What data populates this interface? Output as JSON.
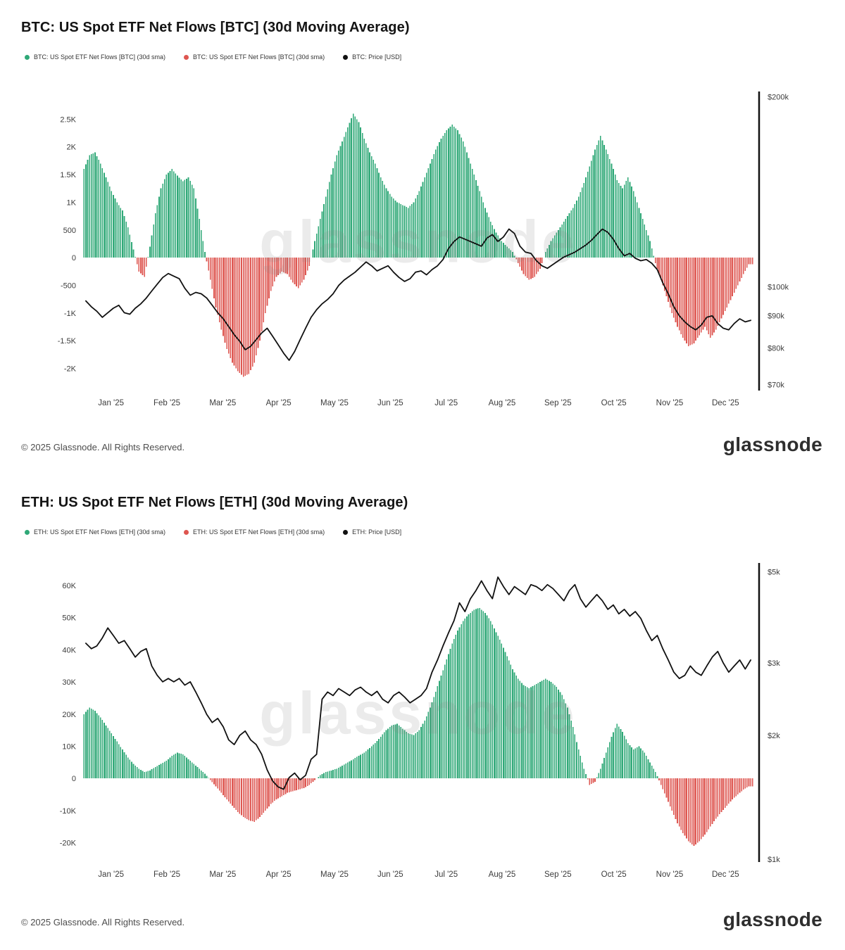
{
  "watermark": "glassnode",
  "footer": {
    "copyright": "© 2025 Glassnode. All Rights Reserved.",
    "brand": "glassnode"
  },
  "chart_data": [
    {
      "id": "btc",
      "type": "bar+line",
      "title": "BTC: US Spot ETF Net Flows [BTC] (30d Moving Average)",
      "legend": [
        {
          "label": "BTC: US Spot ETF Net Flows [BTC] (30d sma)",
          "color": "#2fa877"
        },
        {
          "label": "BTC: US Spot ETF Net Flows [BTC] (30d sma)",
          "color": "#de5650"
        },
        {
          "label": "BTC: Price [USD]",
          "color": "#111111"
        }
      ],
      "colors": {
        "positive": "#2fa877",
        "negative": "#de5650",
        "price": "#111111"
      },
      "left_axis": {
        "title": "Net Flows (30d sma, BTC)",
        "domain": [
          -2400,
          3000
        ],
        "ticks": [
          2500,
          2000,
          1500,
          1000,
          500,
          0,
          -500,
          -1000,
          -1500,
          -2000
        ],
        "labels": [
          "2.5K",
          "2K",
          "1.5K",
          "1K",
          "500",
          "0",
          "-500",
          "-1K",
          "-1.5K",
          "-2K"
        ]
      },
      "right_axis": {
        "title": "BTC Price (USD)",
        "scale": "log",
        "domain": [
          68500,
          204000
        ],
        "ticks": [
          200000,
          100000,
          90000,
          80000,
          70000
        ],
        "labels": [
          "$200k",
          "$100k",
          "$90k",
          "$80k",
          "$70k"
        ]
      },
      "x_labels": [
        "Jan '25",
        "Feb '25",
        "Mar '25",
        "Apr '25",
        "May '25",
        "Jun '25",
        "Jul '25",
        "Aug '25",
        "Sep '25",
        "Oct '25",
        "Nov '25",
        "Dec '25"
      ],
      "sample_interval_days": 3,
      "flows": [
        1600,
        1850,
        1900,
        1700,
        1450,
        1200,
        1000,
        850,
        550,
        150,
        -250,
        -350,
        200,
        800,
        1250,
        1500,
        1600,
        1480,
        1380,
        1450,
        1250,
        700,
        100,
        -400,
        -900,
        -1300,
        -1650,
        -1900,
        -2050,
        -2150,
        -2100,
        -1900,
        -1500,
        -1000,
        -600,
        -350,
        -250,
        -300,
        -450,
        -550,
        -400,
        -150,
        300,
        700,
        1100,
        1500,
        1850,
        2100,
        2350,
        2600,
        2450,
        2150,
        1900,
        1700,
        1450,
        1250,
        1100,
        1000,
        950,
        900,
        1000,
        1200,
        1450,
        1700,
        1950,
        2150,
        2300,
        2400,
        2300,
        2100,
        1800,
        1500,
        1200,
        900,
        650,
        450,
        300,
        200,
        100,
        -100,
        -300,
        -400,
        -350,
        -200,
        100,
        300,
        450,
        600,
        750,
        900,
        1100,
        1350,
        1650,
        1950,
        2200,
        1950,
        1700,
        1400,
        1250,
        1450,
        1200,
        900,
        600,
        300,
        -100,
        -400,
        -700,
        -1000,
        -1250,
        -1450,
        -1600,
        -1550,
        -1400,
        -1250,
        -1450,
        -1300,
        -1100,
        -900,
        -700,
        -500,
        -300,
        -120
      ],
      "price": [
        95000,
        93000,
        91500,
        89500,
        91000,
        92500,
        93500,
        91000,
        90500,
        92500,
        94000,
        96000,
        98500,
        101000,
        103500,
        105000,
        104000,
        103000,
        99500,
        97000,
        98000,
        97500,
        96000,
        93500,
        91000,
        89000,
        86500,
        84000,
        82000,
        79500,
        80500,
        82500,
        84500,
        86000,
        83500,
        81000,
        78500,
        76500,
        79000,
        82500,
        86000,
        89500,
        92000,
        94000,
        95500,
        97500,
        100500,
        102500,
        104000,
        105500,
        107500,
        109500,
        108000,
        106000,
        107000,
        108000,
        105500,
        103500,
        102000,
        103000,
        105500,
        106000,
        104500,
        106500,
        108000,
        110500,
        115000,
        118000,
        120000,
        119000,
        118000,
        117000,
        116000,
        119500,
        121000,
        118000,
        120000,
        123500,
        121500,
        116000,
        113500,
        113000,
        110000,
        108000,
        107000,
        108500,
        110000,
        111500,
        112500,
        113500,
        115000,
        116500,
        118500,
        121000,
        123500,
        122000,
        119000,
        115000,
        112000,
        113000,
        111000,
        110000,
        110500,
        109000,
        106500,
        101500,
        97500,
        93000,
        90000,
        88000,
        86500,
        85500,
        87000,
        89500,
        90000,
        87500,
        86000,
        85500,
        87500,
        89000,
        88000,
        88500
      ]
    },
    {
      "id": "eth",
      "type": "bar+line",
      "title": "ETH: US Spot ETF Net Flows [ETH] (30d Moving Average)",
      "legend": [
        {
          "label": "ETH: US Spot ETF Net Flows [ETH] (30d sma)",
          "color": "#2fa877"
        },
        {
          "label": "ETH: US Spot ETF Net Flows [ETH] (30d sma)",
          "color": "#de5650"
        },
        {
          "label": "ETH: Price [USD]",
          "color": "#111111"
        }
      ],
      "colors": {
        "positive": "#2fa877",
        "negative": "#de5650",
        "price": "#111111"
      },
      "left_axis": {
        "title": "Net Flows (30d sma, ETH)",
        "domain": [
          -26000,
          67000
        ],
        "ticks": [
          60000,
          50000,
          40000,
          30000,
          20000,
          10000,
          0,
          -10000,
          -20000
        ],
        "labels": [
          "60K",
          "50K",
          "40K",
          "30K",
          "20K",
          "10K",
          "0",
          "-10K",
          "-20K"
        ]
      },
      "right_axis": {
        "title": "ETH Price (USD)",
        "scale": "log",
        "domain": [
          985,
          5250
        ],
        "ticks": [
          5000,
          3000,
          2000,
          1000
        ],
        "labels": [
          "$5k",
          "$3k",
          "$2k",
          "$1k"
        ]
      },
      "x_labels": [
        "Jan '25",
        "Feb '25",
        "Mar '25",
        "Apr '25",
        "May '25",
        "Jun '25",
        "Jul '25",
        "Aug '25",
        "Sep '25",
        "Oct '25",
        "Nov '25",
        "Dec '25"
      ],
      "sample_interval_days": 3,
      "flows": [
        20000,
        22000,
        21000,
        19000,
        16500,
        14000,
        11500,
        9000,
        6500,
        4500,
        3000,
        2000,
        2500,
        3500,
        4500,
        5500,
        7000,
        8000,
        7500,
        6000,
        4500,
        3000,
        1500,
        -500,
        -2500,
        -4500,
        -6500,
        -8500,
        -10500,
        -12000,
        -13000,
        -13500,
        -12000,
        -10000,
        -8000,
        -6500,
        -5500,
        -4500,
        -4000,
        -3500,
        -3000,
        -2000,
        -500,
        1000,
        2000,
        2500,
        3000,
        4000,
        5000,
        6000,
        7000,
        8000,
        9500,
        11000,
        13000,
        15000,
        16500,
        17000,
        15500,
        14000,
        13500,
        15000,
        18000,
        22000,
        27000,
        32000,
        37000,
        42000,
        46000,
        49000,
        51000,
        52500,
        53000,
        51500,
        49000,
        45500,
        42000,
        38000,
        34000,
        31000,
        29000,
        28000,
        29000,
        30000,
        31000,
        30000,
        28500,
        26000,
        22000,
        16000,
        9000,
        3000,
        -2000,
        -1000,
        3000,
        8000,
        13000,
        17000,
        14500,
        11000,
        9000,
        10000,
        8000,
        5000,
        2000,
        -2000,
        -6000,
        -10000,
        -14000,
        -17000,
        -19500,
        -21000,
        -19500,
        -17500,
        -15000,
        -12500,
        -10500,
        -8500,
        -6500,
        -5000,
        -3500,
        -2500
      ],
      "price": [
        3350,
        3250,
        3300,
        3450,
        3650,
        3500,
        3350,
        3400,
        3250,
        3100,
        3200,
        3250,
        2950,
        2800,
        2700,
        2750,
        2700,
        2750,
        2650,
        2700,
        2550,
        2400,
        2250,
        2150,
        2200,
        2100,
        1950,
        1900,
        2000,
        2050,
        1950,
        1900,
        1800,
        1650,
        1550,
        1500,
        1480,
        1580,
        1620,
        1560,
        1600,
        1750,
        1800,
        2450,
        2550,
        2500,
        2600,
        2550,
        2500,
        2580,
        2620,
        2550,
        2500,
        2560,
        2450,
        2400,
        2500,
        2550,
        2480,
        2400,
        2450,
        2500,
        2600,
        2850,
        3050,
        3300,
        3550,
        3800,
        4200,
        4000,
        4300,
        4500,
        4750,
        4500,
        4300,
        4850,
        4600,
        4400,
        4600,
        4500,
        4400,
        4650,
        4600,
        4500,
        4650,
        4550,
        4400,
        4250,
        4500,
        4650,
        4300,
        4100,
        4250,
        4400,
        4250,
        4050,
        4150,
        3950,
        4050,
        3900,
        4000,
        3850,
        3600,
        3400,
        3500,
        3250,
        3050,
        2850,
        2750,
        2800,
        2950,
        2850,
        2800,
        2950,
        3100,
        3200,
        3000,
        2850,
        2950,
        3050,
        2900,
        3050
      ]
    }
  ]
}
